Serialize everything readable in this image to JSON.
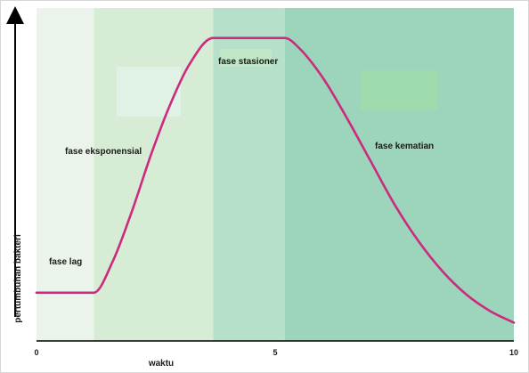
{
  "chart_data": {
    "type": "area",
    "xlabel": "waktu",
    "ylabel": "pertumbuhan bakteri",
    "xlim": [
      0,
      10
    ],
    "ylim": [
      0,
      10
    ],
    "x_ticks": [
      "0",
      "5",
      "10"
    ],
    "grid": false,
    "phases": [
      {
        "name": "fase lag",
        "x_start": 0,
        "x_end": 1.2,
        "color": "#eaf4ea"
      },
      {
        "name": "fase eksponensial",
        "x_start": 1.2,
        "x_end": 3.7,
        "color": "#d6ecd5"
      },
      {
        "name": "fase stasioner",
        "x_start": 3.7,
        "x_end": 5.2,
        "color": "#b6e0c9"
      },
      {
        "name": "fase kematian",
        "x_start": 5.2,
        "x_end": 10,
        "color": "#9dd5bc"
      }
    ],
    "series": [
      {
        "color": "#cc2a7e",
        "x": [
          0,
          1.2,
          1.6,
          2.0,
          2.4,
          2.8,
          3.2,
          3.7,
          4.2,
          5.2,
          5.5,
          6.0,
          6.5,
          7.0,
          7.5,
          8.0,
          8.5,
          9.0,
          9.5,
          10.0
        ],
        "y": [
          1.45,
          1.45,
          2.4,
          3.9,
          5.6,
          7.1,
          8.3,
          9.1,
          9.1,
          9.1,
          8.8,
          7.9,
          6.7,
          5.4,
          4.1,
          3.0,
          2.1,
          1.4,
          0.9,
          0.55
        ]
      }
    ]
  }
}
